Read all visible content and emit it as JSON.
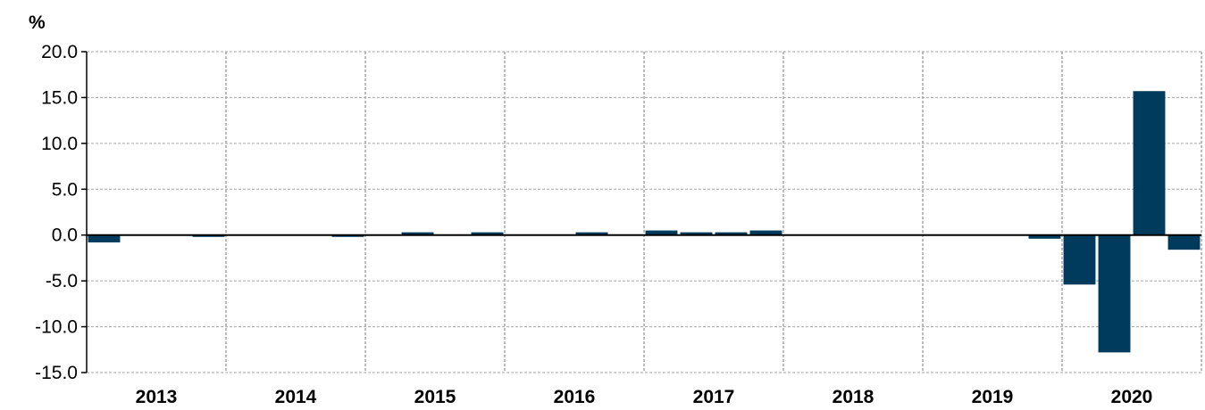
{
  "chart_data": {
    "type": "bar",
    "ylabel": "%",
    "ylim": [
      -15,
      20
    ],
    "ytick_labels": [
      "20.0",
      "15.0",
      "10.0",
      "5.0",
      "0.0",
      "-5.0",
      "-10.0",
      "-15.0"
    ],
    "years": [
      "2013",
      "2014",
      "2015",
      "2016",
      "2017",
      "2018",
      "2019",
      "2020"
    ],
    "grid": true,
    "categories": [
      "2013 Q1",
      "2013 Q2",
      "2013 Q3",
      "2013 Q4",
      "2014 Q1",
      "2014 Q2",
      "2014 Q3",
      "2014 Q4",
      "2015 Q1",
      "2015 Q2",
      "2015 Q3",
      "2015 Q4",
      "2016 Q1",
      "2016 Q2",
      "2016 Q3",
      "2016 Q4",
      "2017 Q1",
      "2017 Q2",
      "2017 Q3",
      "2017 Q4",
      "2018 Q1",
      "2018 Q2",
      "2018 Q3",
      "2018 Q4",
      "2019 Q1",
      "2019 Q2",
      "2019 Q3",
      "2019 Q4",
      "2020 Q1",
      "2020 Q2",
      "2020 Q3",
      "2020 Q4"
    ],
    "values": [
      -0.8,
      0.0,
      0.0,
      -0.2,
      0.0,
      0.0,
      0.0,
      -0.2,
      0.0,
      0.3,
      0.0,
      0.3,
      0.0,
      0.0,
      0.3,
      0.0,
      0.5,
      0.3,
      0.3,
      0.5,
      0.0,
      0.0,
      0.0,
      0.0,
      0.0,
      0.0,
      0.0,
      -0.4,
      -5.4,
      -12.8,
      15.7,
      -1.6
    ],
    "colors": {
      "bar": "#003a5d",
      "grid": "#a6a6a6",
      "axis": "#000000"
    }
  }
}
